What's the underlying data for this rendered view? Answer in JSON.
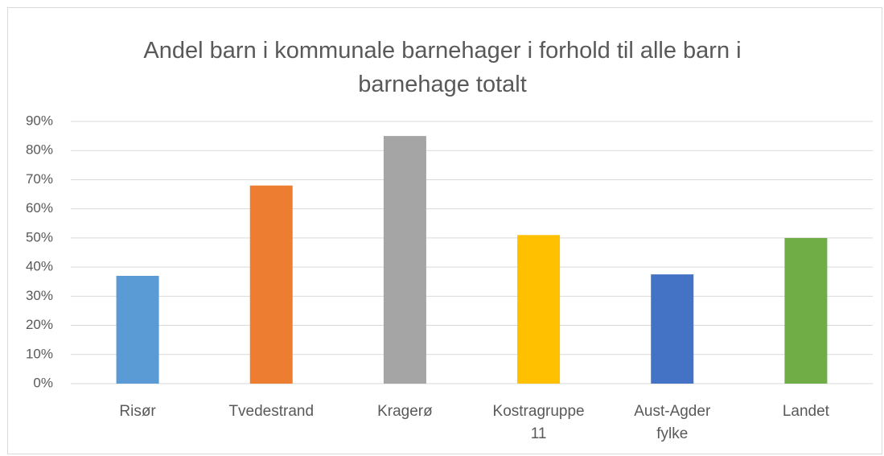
{
  "chart_data": {
    "type": "bar",
    "title": "Andel barn i kommunale barnehager i forhold til alle barn i barnehage totalt",
    "categories": [
      "Risør",
      "Tvedestrand",
      "Kragerø",
      "Kostragruppe 11",
      "Aust-Agder fylke",
      "Landet"
    ],
    "values": [
      37,
      68,
      85,
      51,
      37.5,
      50
    ],
    "colors": [
      "#5b9bd5",
      "#ed7d31",
      "#a5a5a5",
      "#ffc000",
      "#4472c4",
      "#70ad47"
    ],
    "ylim": [
      0,
      90
    ],
    "yticks": [
      {
        "value": 0,
        "label": "0%"
      },
      {
        "value": 10,
        "label": "10%"
      },
      {
        "value": 20,
        "label": "20%"
      },
      {
        "value": 30,
        "label": "30%"
      },
      {
        "value": 40,
        "label": "40%"
      },
      {
        "value": 50,
        "label": "50%"
      },
      {
        "value": 60,
        "label": "60%"
      },
      {
        "value": 70,
        "label": "70%"
      },
      {
        "value": 80,
        "label": "80%"
      },
      {
        "value": 90,
        "label": "90%"
      }
    ],
    "grid": true
  }
}
